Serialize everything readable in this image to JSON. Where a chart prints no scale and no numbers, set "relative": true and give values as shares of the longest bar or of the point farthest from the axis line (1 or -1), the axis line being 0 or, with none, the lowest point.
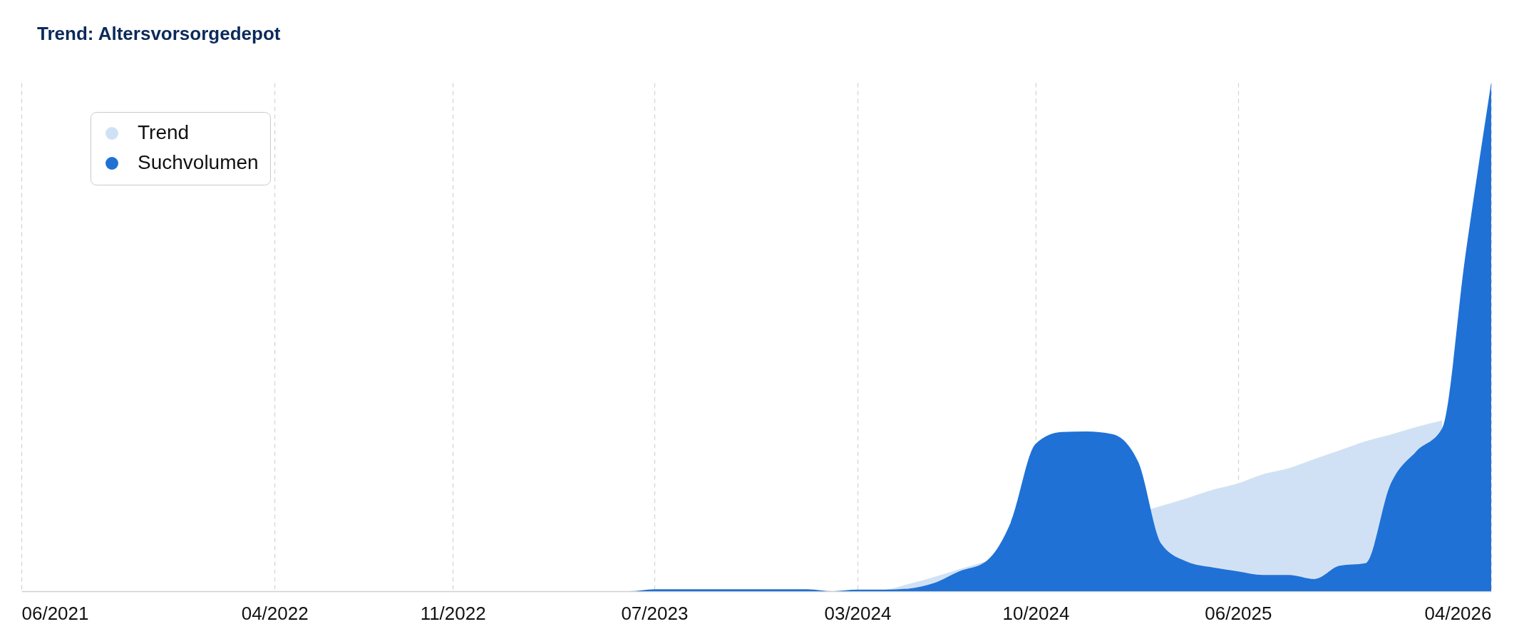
{
  "chart_data": {
    "type": "area",
    "title": "Trend: Altersvorsorgedepot",
    "x": [
      "2021-06",
      "2021-07",
      "2021-08",
      "2021-09",
      "2021-10",
      "2021-11",
      "2021-12",
      "2022-01",
      "2022-02",
      "2022-03",
      "2022-04",
      "2022-05",
      "2022-06",
      "2022-07",
      "2022-08",
      "2022-09",
      "2022-10",
      "2022-11",
      "2022-12",
      "2023-01",
      "2023-02",
      "2023-03",
      "2023-04",
      "2023-05",
      "2023-06",
      "2023-07",
      "2023-08",
      "2023-09",
      "2023-10",
      "2023-11",
      "2023-12",
      "2024-01",
      "2024-02",
      "2024-03",
      "2024-04",
      "2024-05",
      "2024-06",
      "2024-07",
      "2024-08",
      "2024-09",
      "2024-10",
      "2024-11",
      "2024-12",
      "2025-01",
      "2025-02",
      "2025-03",
      "2025-04",
      "2025-05",
      "2025-06",
      "2025-07",
      "2025-08",
      "2025-09",
      "2025-10",
      "2025-11",
      "2025-12",
      "2026-01",
      "2026-02",
      "2026-03",
      "2026-04"
    ],
    "xlim": [
      "2021-06",
      "2026-04"
    ],
    "xticks": [
      {
        "value": "2021-06",
        "label": "06/2021"
      },
      {
        "value": "2022-04",
        "label": "04/2022"
      },
      {
        "value": "2022-11",
        "label": "11/2022"
      },
      {
        "value": "2023-07",
        "label": "07/2023"
      },
      {
        "value": "2024-03",
        "label": "03/2024"
      },
      {
        "value": "2024-10",
        "label": "10/2024"
      },
      {
        "value": "2025-06",
        "label": "06/2025"
      },
      {
        "value": "2026-04",
        "label": "04/2026"
      }
    ],
    "relative": true,
    "series": [
      {
        "name": "Trend",
        "color": "#d1e1f5",
        "values": [
          0,
          0,
          0,
          0,
          0,
          0,
          0,
          0,
          0,
          0,
          0,
          0,
          0,
          0,
          0,
          0,
          0,
          0,
          0,
          0,
          0,
          0,
          0,
          0,
          0,
          0,
          0,
          0,
          0,
          0,
          0,
          0,
          0,
          0,
          0.002,
          0.014,
          0.028,
          0.043,
          0.058,
          null,
          null,
          null,
          null,
          null,
          null,
          0.168,
          0.183,
          0.199,
          0.212,
          0.23,
          0.242,
          0.26,
          0.277,
          0.295,
          0.308,
          0.323,
          0.336,
          null,
          null
        ]
      },
      {
        "name": "Suchvolumen",
        "color": "#1f71d6",
        "values": [
          0,
          0,
          0,
          0,
          0,
          0,
          0,
          0,
          0,
          0,
          0,
          0,
          0,
          0,
          0,
          0,
          0,
          0,
          0,
          0,
          0,
          0,
          0,
          0,
          0,
          0.004,
          0.004,
          0.004,
          0.004,
          0.004,
          0.004,
          0.004,
          0,
          0.003,
          0.003,
          0.005,
          0.016,
          0.039,
          0.057,
          0.135,
          0.29,
          0.313,
          0.314,
          0.309,
          0.255,
          0.093,
          0.058,
          0.047,
          0.039,
          0.032,
          0.032,
          0.024,
          0.05,
          0.055,
          0.21,
          0.275,
          0.32,
          0.66,
          1
        ]
      }
    ],
    "grid": "x",
    "legend": "top left"
  }
}
